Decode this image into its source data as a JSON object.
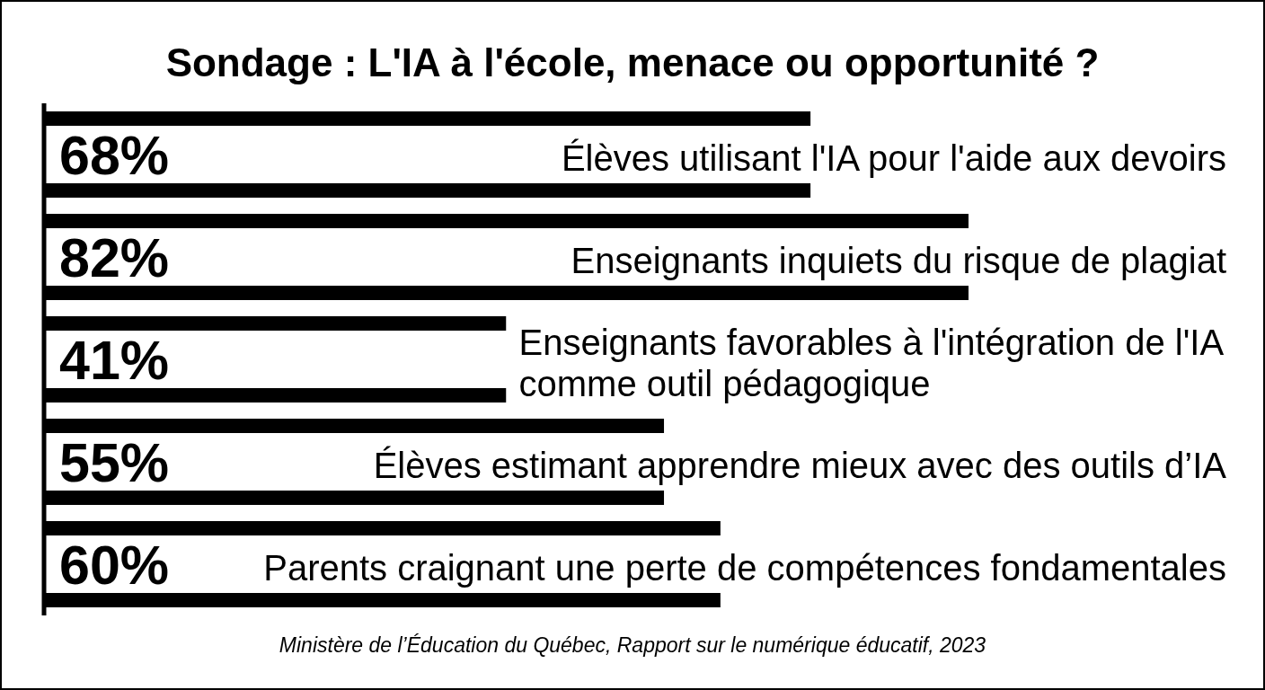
{
  "chart_data": {
    "type": "bar",
    "orientation": "horizontal",
    "title": "Sondage : L'IA à l'école, menace ou opportunité ?",
    "categories": [
      "Élèves utilisant l'IA pour l'aide aux devoirs",
      "Enseignants inquiets du risque de plagiat",
      "Enseignants favorables à l'intégration de l'IA comme outil pédagogique",
      "Élèves estimant apprendre mieux avec des outils d’IA",
      "Parents craignant une perte de compétences fondamentales"
    ],
    "values": [
      68,
      82,
      41,
      55,
      60
    ],
    "value_labels": [
      "68%",
      "82%",
      "41%",
      "55%",
      "60%"
    ],
    "color": "#000000",
    "tick_labels": "y",
    "annotations": [
      "Ministère de l’Éducation du Québec, Rapport sur le numérique éducatif, 2023"
    ]
  }
}
